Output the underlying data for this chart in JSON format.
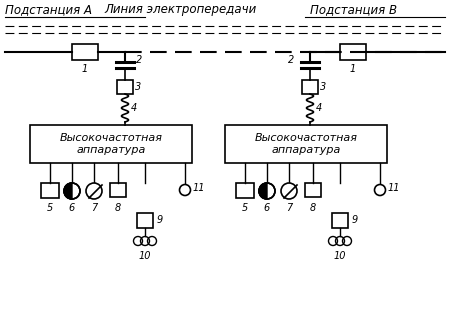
{
  "title": "Линия электропередачи",
  "substation_a": "Подстанция А",
  "substation_b": "Подстанция В",
  "box_label": "Высокочастотная\nаппаратура",
  "bg_color": "#ffffff",
  "line_color": "#000000",
  "figsize": [
    4.5,
    3.32
  ],
  "dpi": 100
}
